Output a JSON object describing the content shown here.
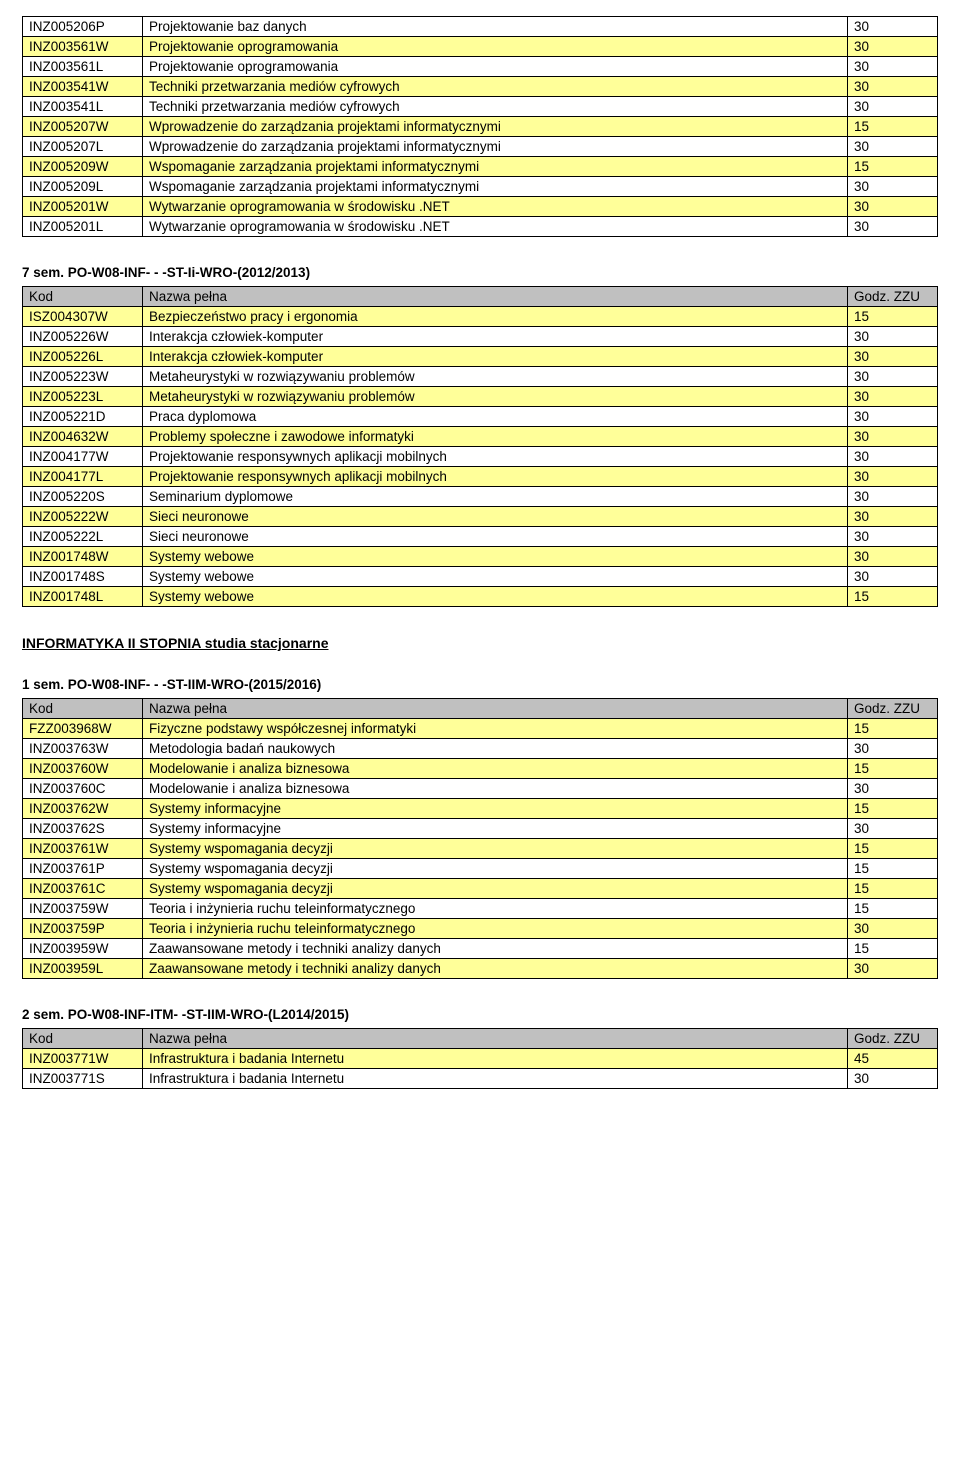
{
  "colHeaders": {
    "code": "Kod",
    "name": "Nazwa pełna",
    "zzu": "Godz. ZZU"
  },
  "table1": {
    "rows": [
      {
        "hl": false,
        "code": "INZ005206P",
        "name": "Projektowanie baz danych",
        "zzu": "30"
      },
      {
        "hl": true,
        "code": "INZ003561W",
        "name": "Projektowanie oprogramowania",
        "zzu": "30"
      },
      {
        "hl": false,
        "code": "INZ003561L",
        "name": "Projektowanie oprogramowania",
        "zzu": "30"
      },
      {
        "hl": true,
        "code": "INZ003541W",
        "name": "Techniki przetwarzania mediów cyfrowych",
        "zzu": "30"
      },
      {
        "hl": false,
        "code": "INZ003541L",
        "name": "Techniki przetwarzania mediów cyfrowych",
        "zzu": "30"
      },
      {
        "hl": true,
        "code": "INZ005207W",
        "name": "Wprowadzenie do zarządzania projektami informatycznymi",
        "zzu": "15"
      },
      {
        "hl": false,
        "code": "INZ005207L",
        "name": "Wprowadzenie do zarządzania projektami informatycznymi",
        "zzu": "30"
      },
      {
        "hl": true,
        "code": "INZ005209W",
        "name": "Wspomaganie zarządzania projektami informatycznymi",
        "zzu": "15"
      },
      {
        "hl": false,
        "code": "INZ005209L",
        "name": "Wspomaganie zarządzania projektami informatycznymi",
        "zzu": "30"
      },
      {
        "hl": true,
        "code": "INZ005201W",
        "name": "Wytwarzanie oprogramowania w środowisku .NET",
        "zzu": "30"
      },
      {
        "hl": false,
        "code": "INZ005201L",
        "name": "Wytwarzanie oprogramowania w środowisku .NET",
        "zzu": "30"
      }
    ]
  },
  "table2": {
    "title": "7 sem. PO-W08-INF- - -ST-Ii-WRO-(2012/2013)",
    "rows": [
      {
        "hl": true,
        "code": "ISZ004307W",
        "name": "Bezpieczeństwo pracy i ergonomia",
        "zzu": "15"
      },
      {
        "hl": false,
        "code": "INZ005226W",
        "name": "Interakcja człowiek-komputer",
        "zzu": "30"
      },
      {
        "hl": true,
        "code": "INZ005226L",
        "name": "Interakcja człowiek-komputer",
        "zzu": "30"
      },
      {
        "hl": false,
        "code": "INZ005223W",
        "name": "Metaheurystyki w rozwiązywaniu problemów",
        "zzu": "30"
      },
      {
        "hl": true,
        "code": "INZ005223L",
        "name": "Metaheurystyki w rozwiązywaniu problemów",
        "zzu": "30"
      },
      {
        "hl": false,
        "code": "INZ005221D",
        "name": "Praca dyplomowa",
        "zzu": "30"
      },
      {
        "hl": true,
        "code": "INZ004632W",
        "name": "Problemy społeczne i zawodowe informatyki",
        "zzu": "30"
      },
      {
        "hl": false,
        "code": "INZ004177W",
        "name": "Projektowanie responsywnych aplikacji mobilnych",
        "zzu": "30"
      },
      {
        "hl": true,
        "code": "INZ004177L",
        "name": "Projektowanie responsywnych aplikacji mobilnych",
        "zzu": "30"
      },
      {
        "hl": false,
        "code": "INZ005220S",
        "name": "Seminarium dyplomowe",
        "zzu": "30"
      },
      {
        "hl": true,
        "code": "INZ005222W",
        "name": "Sieci neuronowe",
        "zzu": "30"
      },
      {
        "hl": false,
        "code": "INZ005222L",
        "name": "Sieci neuronowe",
        "zzu": "30"
      },
      {
        "hl": true,
        "code": "INZ001748W",
        "name": "Systemy webowe",
        "zzu": "30"
      },
      {
        "hl": false,
        "code": "INZ001748S",
        "name": "Systemy webowe",
        "zzu": "30"
      },
      {
        "hl": true,
        "code": "INZ001748L",
        "name": "Systemy webowe",
        "zzu": "15"
      }
    ]
  },
  "bigHeading": "INFORMATYKA II STOPNIA studia stacjonarne",
  "table3": {
    "title": "1 sem. PO-W08-INF- - -ST-IIM-WRO-(2015/2016)",
    "rows": [
      {
        "hl": true,
        "code": "FZZ003968W",
        "name": "Fizyczne podstawy współczesnej informatyki",
        "zzu": "15"
      },
      {
        "hl": false,
        "code": "INZ003763W",
        "name": "Metodologia badań naukowych",
        "zzu": "30"
      },
      {
        "hl": true,
        "code": "INZ003760W",
        "name": "Modelowanie i analiza biznesowa",
        "zzu": "15"
      },
      {
        "hl": false,
        "code": "INZ003760C",
        "name": "Modelowanie i analiza biznesowa",
        "zzu": "30"
      },
      {
        "hl": true,
        "code": "INZ003762W",
        "name": "Systemy informacyjne",
        "zzu": "15"
      },
      {
        "hl": false,
        "code": "INZ003762S",
        "name": "Systemy informacyjne",
        "zzu": "30"
      },
      {
        "hl": true,
        "code": "INZ003761W",
        "name": "Systemy wspomagania decyzji",
        "zzu": "15"
      },
      {
        "hl": false,
        "code": "INZ003761P",
        "name": "Systemy wspomagania decyzji",
        "zzu": "15"
      },
      {
        "hl": true,
        "code": "INZ003761C",
        "name": "Systemy wspomagania decyzji",
        "zzu": "15"
      },
      {
        "hl": false,
        "code": "INZ003759W",
        "name": "Teoria i inżynieria ruchu teleinformatycznego",
        "zzu": "15"
      },
      {
        "hl": true,
        "code": "INZ003759P",
        "name": "Teoria i inżynieria ruchu teleinformatycznego",
        "zzu": "30"
      },
      {
        "hl": false,
        "code": "INZ003959W",
        "name": "Zaawansowane metody i techniki analizy danych",
        "zzu": "15"
      },
      {
        "hl": true,
        "code": "INZ003959L",
        "name": "Zaawansowane metody i techniki analizy danych",
        "zzu": "30"
      }
    ]
  },
  "table4": {
    "title": "2 sem. PO-W08-INF-ITM- -ST-IIM-WRO-(L2014/2015)",
    "rows": [
      {
        "hl": true,
        "code": "INZ003771W",
        "name": "Infrastruktura i badania Internetu",
        "zzu": "45"
      },
      {
        "hl": false,
        "code": "INZ003771S",
        "name": "Infrastruktura i badania Internetu",
        "zzu": "30"
      }
    ]
  }
}
